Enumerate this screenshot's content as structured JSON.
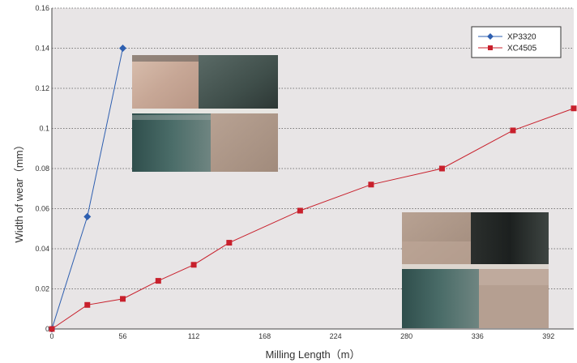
{
  "chart_data": {
    "type": "line",
    "title": "",
    "xlabel": "Milling Length（m）",
    "ylabel": "Width of wear（mm）",
    "xlim": [
      0,
      412
    ],
    "ylim": [
      0,
      0.16
    ],
    "x_ticks": [
      "0",
      "56",
      "112",
      "168",
      "224",
      "280",
      "336",
      "392"
    ],
    "x_tick_values": [
      0,
      56,
      112,
      168,
      224,
      280,
      336,
      392
    ],
    "y_ticks": [
      "0",
      "0.02",
      "0.04",
      "0.06",
      "0.08",
      "0.1",
      "0.12",
      "0.14",
      "0.16"
    ],
    "y_tick_values": [
      0,
      0.02,
      0.04,
      0.06,
      0.08,
      0.1,
      0.12,
      0.14,
      0.16
    ],
    "grid": true,
    "legend_position": "top-right",
    "series": [
      {
        "name": "XP3320",
        "color": "#2e5fb0",
        "marker": "diamond",
        "x": [
          0,
          28,
          56
        ],
        "y": [
          0,
          0.056,
          0.14
        ]
      },
      {
        "name": "XC4505",
        "color": "#c8202c",
        "marker": "square",
        "x": [
          0,
          28,
          56,
          84,
          112,
          140,
          196,
          252,
          308,
          364,
          420
        ],
        "y": [
          0,
          0.012,
          0.015,
          0.024,
          0.032,
          0.043,
          0.059,
          0.072,
          0.08,
          0.099,
          0.11
        ]
      }
    ]
  },
  "colors": {
    "plot_background": "#e8e5e6",
    "grid": "#555555"
  },
  "photos": [
    {
      "icon": "insert-photo-xp3320"
    },
    {
      "icon": "insert-photo-xc4505"
    }
  ]
}
